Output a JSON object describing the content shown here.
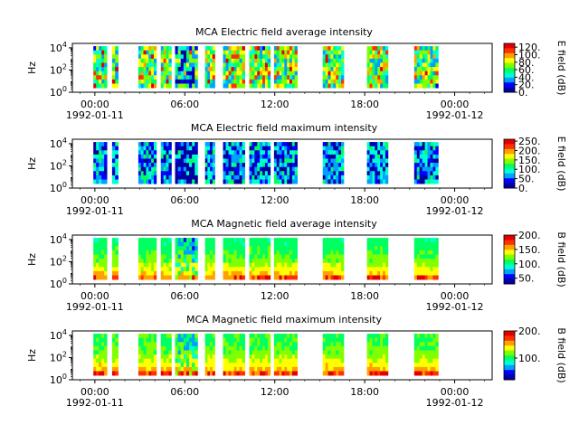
{
  "chart_data": [
    {
      "type": "heatmap",
      "title": "MCA  Electric field average intensity",
      "ylabel": "Hz",
      "y_scale": "log",
      "ylim_log10": [
        0,
        4.4
      ],
      "y_ticks": [
        {
          "base": "10",
          "exp": "0",
          "v": 0
        },
        {
          "base": "10",
          "exp": "2",
          "v": 2
        },
        {
          "base": "10",
          "exp": "4",
          "v": 4
        }
      ],
      "x_ticks": [
        "00:00",
        "06:00",
        "12:00",
        "18:00",
        "00:00"
      ],
      "x_dates": [
        "1992-01-11",
        "1992-01-12"
      ],
      "colorbar": {
        "label": "E field (dB)",
        "range": [
          0,
          130
        ],
        "ticks": [
          "0.",
          "20.",
          "40.",
          "60.",
          "80.",
          "100.",
          "120."
        ],
        "tick_values": [
          0,
          20,
          40,
          60,
          80,
          100,
          120
        ]
      },
      "base_level": 95,
      "top_level": 100
    },
    {
      "type": "heatmap",
      "title": "MCA  Electric field maximum intensity",
      "ylabel": "Hz",
      "y_scale": "log",
      "ylim_log10": [
        0,
        4.4
      ],
      "y_ticks": [
        {
          "base": "10",
          "exp": "0",
          "v": 0
        },
        {
          "base": "10",
          "exp": "2",
          "v": 2
        },
        {
          "base": "10",
          "exp": "4",
          "v": 4
        }
      ],
      "x_ticks": [
        "00:00",
        "06:00",
        "12:00",
        "18:00",
        "00:00"
      ],
      "x_dates": [
        "1992-01-11",
        "1992-01-12"
      ],
      "colorbar": {
        "label": "E field (dB)",
        "range": [
          0,
          260
        ],
        "ticks": [
          "0.",
          "50.",
          "100.",
          "150.",
          "200.",
          "250."
        ],
        "tick_values": [
          0,
          50,
          100,
          150,
          200,
          250
        ]
      },
      "base_level": 135,
      "top_level": 130
    },
    {
      "type": "heatmap",
      "title": "MCA  Magnetic field average intensity",
      "ylabel": "Hz",
      "y_scale": "log",
      "ylim_log10": [
        0,
        4.4
      ],
      "y_ticks": [
        {
          "base": "10",
          "exp": "0",
          "v": 0
        },
        {
          "base": "10",
          "exp": "2",
          "v": 2
        },
        {
          "base": "10",
          "exp": "4",
          "v": 4
        }
      ],
      "x_ticks": [
        "00:00",
        "06:00",
        "12:00",
        "18:00",
        "00:00"
      ],
      "x_dates": [
        "1992-01-11",
        "1992-01-12"
      ],
      "colorbar": {
        "label": "B field (dB)",
        "range": [
          30,
          200
        ],
        "ticks": [
          "50.",
          "100.",
          "150.",
          "200."
        ],
        "tick_values": [
          50,
          100,
          150,
          200
        ]
      },
      "base_level": 160,
      "top_level": 105
    },
    {
      "type": "heatmap",
      "title": "MCA  Magnetic field maximum intensity",
      "ylabel": "Hz",
      "y_scale": "log",
      "ylim_log10": [
        0,
        4.4
      ],
      "y_ticks": [
        {
          "base": "10",
          "exp": "0",
          "v": 0
        },
        {
          "base": "10",
          "exp": "2",
          "v": 2
        },
        {
          "base": "10",
          "exp": "4",
          "v": 4
        }
      ],
      "x_ticks": [
        "00:00",
        "06:00",
        "12:00",
        "18:00",
        "00:00"
      ],
      "x_dates": [
        "1992-01-11",
        "1992-01-12"
      ],
      "colorbar": {
        "label": "B field (dB)",
        "range": [
          20,
          200
        ],
        "ticks": [
          "100.",
          "200."
        ],
        "tick_values": [
          100,
          200
        ]
      },
      "base_level": 160,
      "top_level": 105
    }
  ],
  "data_segments_hours": [
    [
      -0.1,
      0.8
    ],
    [
      1.15,
      1.55
    ],
    [
      2.9,
      4.1
    ],
    [
      4.4,
      5.1
    ],
    [
      5.35,
      6.85
    ],
    [
      7.35,
      8.0
    ],
    [
      8.55,
      10.0
    ],
    [
      10.3,
      11.7
    ],
    [
      11.95,
      13.5
    ],
    [
      15.2,
      16.6
    ],
    [
      18.15,
      19.55
    ],
    [
      21.3,
      22.9
    ]
  ],
  "colormap": [
    "#0000a0",
    "#0000ff",
    "#00a0ff",
    "#00ffd0",
    "#00ff60",
    "#80ff00",
    "#ffff00",
    "#ffa000",
    "#ff3000",
    "#e00000"
  ]
}
